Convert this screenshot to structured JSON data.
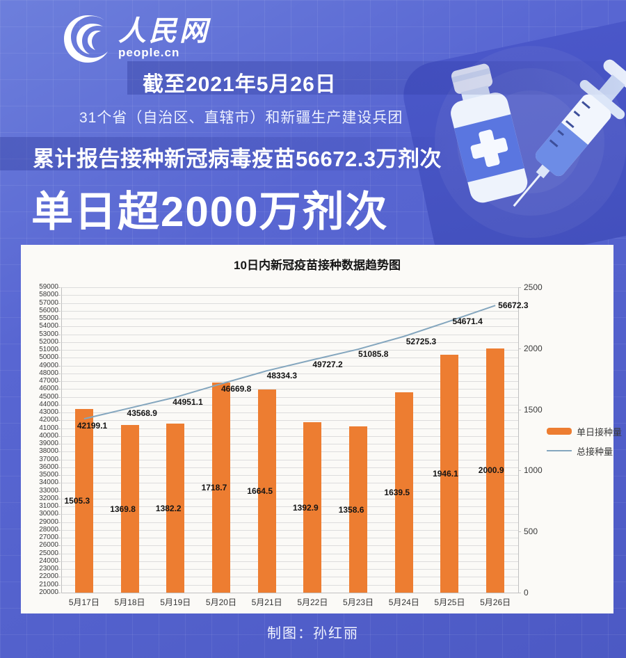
{
  "header": {
    "logo_cn": "人民网",
    "logo_en": "people.cn",
    "date_line": "截至2021年5月26日",
    "subtitle": "31个省（自治区、直辖市）和新疆生产建设兵团",
    "cumulative_line": "累计报告接种新冠病毒疫苗56672.3万剂次",
    "headline": "单日超2000万剂次"
  },
  "chart_data": {
    "type": "bar+line combo",
    "title": "10日内新冠疫苗接种数据趋势图",
    "categories": [
      "5月17日",
      "5月18日",
      "5月19日",
      "5月20日",
      "5月21日",
      "5月22日",
      "5月23日",
      "5月24日",
      "5月25日",
      "5月26日"
    ],
    "series": [
      {
        "name": "单日接种量",
        "type": "bar",
        "axis": "right",
        "color": "#ED7D31",
        "values": [
          1505.3,
          1369.8,
          1382.2,
          1718.7,
          1664.5,
          1392.9,
          1358.6,
          1639.5,
          1946.1,
          2000.9
        ]
      },
      {
        "name": "总接种量",
        "type": "line",
        "axis": "left",
        "color": "#84A6BE",
        "values": [
          42199.1,
          43568.9,
          44951.1,
          46669.8,
          48334.3,
          49727.2,
          51085.8,
          52725.3,
          54671.4,
          56672.3
        ]
      }
    ],
    "left_axis": {
      "min": 20000,
      "max": 59000,
      "step": 1000
    },
    "right_axis": {
      "min": 0,
      "max": 2500,
      "step": 500
    },
    "grid": true,
    "legend_position": "right"
  },
  "colors": {
    "background_blue": "#5563CE",
    "panel_blue": "#4753C2",
    "bar_orange": "#ED7D31",
    "line_blue": "#84A6BE",
    "chart_background": "#FBFAF7",
    "grid_gray": "#DCDCDC",
    "axis_text": "#3A3A3A"
  },
  "footer": {
    "credit": "制图：孙红丽"
  }
}
